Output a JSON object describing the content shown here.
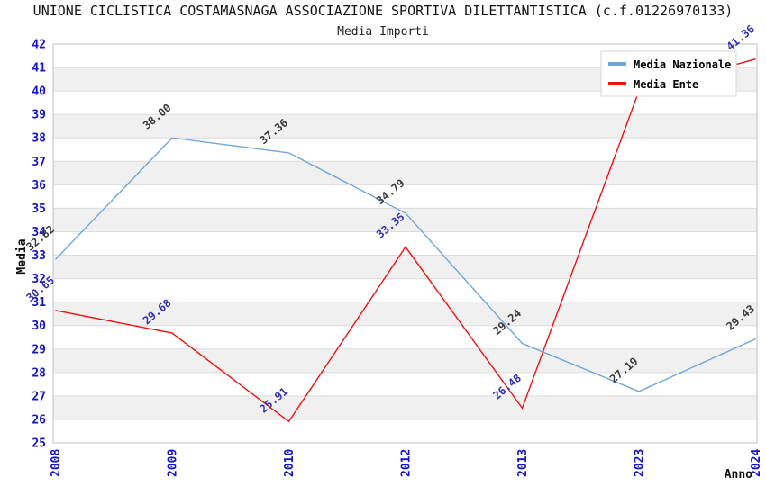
{
  "chart_data": {
    "type": "line",
    "title": "UNIONE CICLISTICA COSTAMASNAGA ASSOCIAZIONE SPORTIVA DILETTANTISTICA (c.f.01226970133)",
    "subtitle": "Media Importi",
    "categories": [
      "2008",
      "2009",
      "2010",
      "2012",
      "2013",
      "2023",
      "2024"
    ],
    "xlabel": "Anno",
    "ylabel": "Media",
    "ylim": [
      25,
      42
    ],
    "ytick_step": 1,
    "yticks": [
      "42",
      "41",
      "40",
      "39",
      "38",
      "37",
      "36",
      "35",
      "34",
      "33",
      "32",
      "31",
      "30",
      "29",
      "28",
      "27",
      "26",
      "25"
    ],
    "grid": "alternating horizontal bands, no vertical gridlines",
    "legend_position": "top-right",
    "series": [
      {
        "name": "Media Nazionale",
        "color": "#6FA6DB",
        "label_color": "#3A3A3A",
        "values": [
          32.82,
          38.0,
          37.36,
          34.79,
          29.24,
          27.19,
          29.43
        ],
        "point_labels": [
          "32.82",
          "38.00",
          "37.36",
          "34.79",
          "29.24",
          "27.19",
          "29.43"
        ]
      },
      {
        "name": "Media Ente",
        "color": "#EE1111",
        "label_color": "#3333B4",
        "values": [
          30.65,
          29.68,
          25.91,
          33.35,
          26.48,
          40.0,
          41.36
        ],
        "point_labels": [
          "30.65",
          "29.68",
          "25.91",
          "33.35",
          "26.48",
          "",
          "41.36"
        ]
      }
    ],
    "style": {
      "tick_color": "#1414CC",
      "band_color": "#F0F0F0",
      "grid_line_color": "#DCDCDC",
      "frame_color": "#C0C0C0"
    }
  }
}
